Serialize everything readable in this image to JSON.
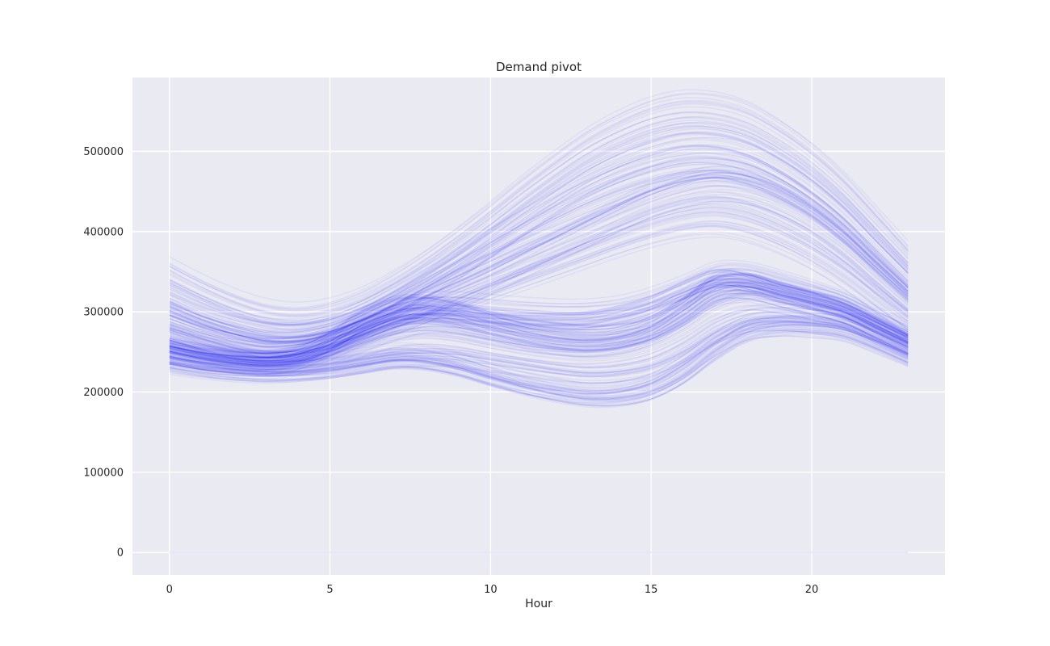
{
  "chart_data": {
    "type": "line",
    "title": "Demand pivot",
    "xlabel": "Hour",
    "ylabel": "",
    "xlim": [
      -1.15,
      24.15
    ],
    "ylim": [
      -28000,
      592000
    ],
    "x_ticks": [
      0,
      5,
      10,
      15,
      20
    ],
    "y_ticks": [
      0,
      100000,
      200000,
      300000,
      400000,
      500000
    ],
    "x_tick_labels": [
      "0",
      "5",
      "10",
      "15",
      "20"
    ],
    "y_tick_labels": [
      "0",
      "100000",
      "200000",
      "300000",
      "400000",
      "500000"
    ],
    "grid": true,
    "legend": "none",
    "line_color": "#0000ff",
    "line_alpha": 0.05,
    "background_color": "#eaeaf2",
    "x": [
      0,
      1,
      2,
      3,
      4,
      5,
      6,
      7,
      8,
      9,
      10,
      11,
      12,
      13,
      14,
      15,
      16,
      17,
      18,
      19,
      20,
      21,
      22,
      23
    ],
    "representative_profiles": [
      {
        "values": [
          252000,
          245000,
          240000,
          237000,
          242000,
          258000,
          282000,
          298000,
          302000,
          295000,
          285000,
          278000,
          273000,
          270000,
          272000,
          280000,
          300000,
          330000,
          335000,
          325000,
          315000,
          305000,
          285000,
          265000
        ]
      },
      {
        "values": [
          250000,
          242000,
          238000,
          236000,
          240000,
          250000,
          265000,
          280000,
          290000,
          288000,
          280000,
          270000,
          262000,
          258000,
          262000,
          275000,
          300000,
          325000,
          330000,
          322000,
          312000,
          300000,
          282000,
          262000
        ]
      },
      {
        "values": [
          260000,
          250000,
          243000,
          240000,
          244000,
          256000,
          275000,
          292000,
          298000,
          296000,
          292000,
          290000,
          290000,
          292000,
          300000,
          312000,
          330000,
          345000,
          340000,
          328000,
          318000,
          305000,
          288000,
          268000
        ]
      },
      {
        "values": [
          270000,
          258000,
          248000,
          242000,
          245000,
          255000,
          270000,
          285000,
          298000,
          310000,
          325000,
          340000,
          355000,
          370000,
          385000,
          398000,
          408000,
          412000,
          405000,
          390000,
          370000,
          345000,
          315000,
          285000
        ]
      },
      {
        "values": [
          290000,
          275000,
          263000,
          255000,
          255000,
          262000,
          275000,
          290000,
          305000,
          322000,
          340000,
          360000,
          380000,
          400000,
          420000,
          438000,
          450000,
          455000,
          448000,
          432000,
          410000,
          380000,
          345000,
          310000
        ]
      },
      {
        "values": [
          320000,
          302000,
          288000,
          278000,
          276000,
          282000,
          296000,
          315000,
          338000,
          362000,
          390000,
          418000,
          445000,
          470000,
          490000,
          505000,
          515000,
          515000,
          505000,
          485000,
          458000,
          425000,
          385000,
          345000
        ]
      },
      {
        "values": [
          345000,
          325000,
          308000,
          296000,
          292000,
          298000,
          312000,
          333000,
          358000,
          386000,
          416000,
          447000,
          476000,
          503000,
          524000,
          540000,
          548000,
          546000,
          535000,
          513000,
          485000,
          450000,
          408000,
          365000
        ]
      },
      {
        "values": [
          238000,
          232000,
          228000,
          226000,
          228000,
          232000,
          238000,
          244000,
          246000,
          244000,
          238000,
          232000,
          226000,
          222000,
          224000,
          232000,
          250000,
          275000,
          290000,
          293000,
          290000,
          283000,
          268000,
          250000
        ]
      },
      {
        "values": [
          240000,
          233000,
          228000,
          225000,
          226000,
          230000,
          236000,
          242000,
          240000,
          232000,
          220000,
          210000,
          203000,
          198000,
          200000,
          210000,
          232000,
          260000,
          280000,
          285000,
          283000,
          278000,
          262000,
          245000
        ]
      },
      {
        "values": [
          235000,
          228000,
          224000,
          222000,
          223000,
          226000,
          232000,
          238000,
          236000,
          228000,
          216000,
          205000,
          196000,
          190000,
          190000,
          198000,
          218000,
          248000,
          272000,
          280000,
          280000,
          275000,
          260000,
          242000
        ]
      },
      {
        "values": [
          255000,
          247000,
          242000,
          240000,
          246000,
          264000,
          290000,
          305000,
          306000,
          298000,
          286000,
          276000,
          270000,
          268000,
          272000,
          285000,
          308000,
          335000,
          338000,
          328000,
          318000,
          306000,
          286000,
          266000
        ]
      },
      {
        "values": [
          285000,
          272000,
          262000,
          256000,
          258000,
          268000,
          285000,
          303000,
          322000,
          340000,
          358000,
          376000,
          393000,
          410000,
          426000,
          442000,
          455000,
          462000,
          458000,
          444000,
          422000,
          392000,
          355000,
          318000
        ]
      },
      {
        "values": [
          310000,
          294000,
          282000,
          274000,
          274000,
          282000,
          298000,
          318000,
          340000,
          362000,
          385000,
          408000,
          430000,
          450000,
          467000,
          480000,
          488000,
          490000,
          483000,
          465000,
          440000,
          408000,
          368000,
          330000
        ]
      },
      {
        "values": [
          265000,
          255000,
          248000,
          245000,
          248000,
          260000,
          278000,
          295000,
          305000,
          306000,
          303000,
          300000,
          298000,
          298000,
          302000,
          312000,
          326000,
          342000,
          342000,
          332000,
          320000,
          306000,
          288000,
          270000
        ]
      },
      {
        "values": [
          248000,
          240000,
          235000,
          233000,
          236000,
          245000,
          258000,
          270000,
          274000,
          270000,
          262000,
          255000,
          250000,
          248000,
          252000,
          262000,
          282000,
          308000,
          320000,
          316000,
          308000,
          298000,
          278000,
          258000
        ]
      }
    ]
  }
}
